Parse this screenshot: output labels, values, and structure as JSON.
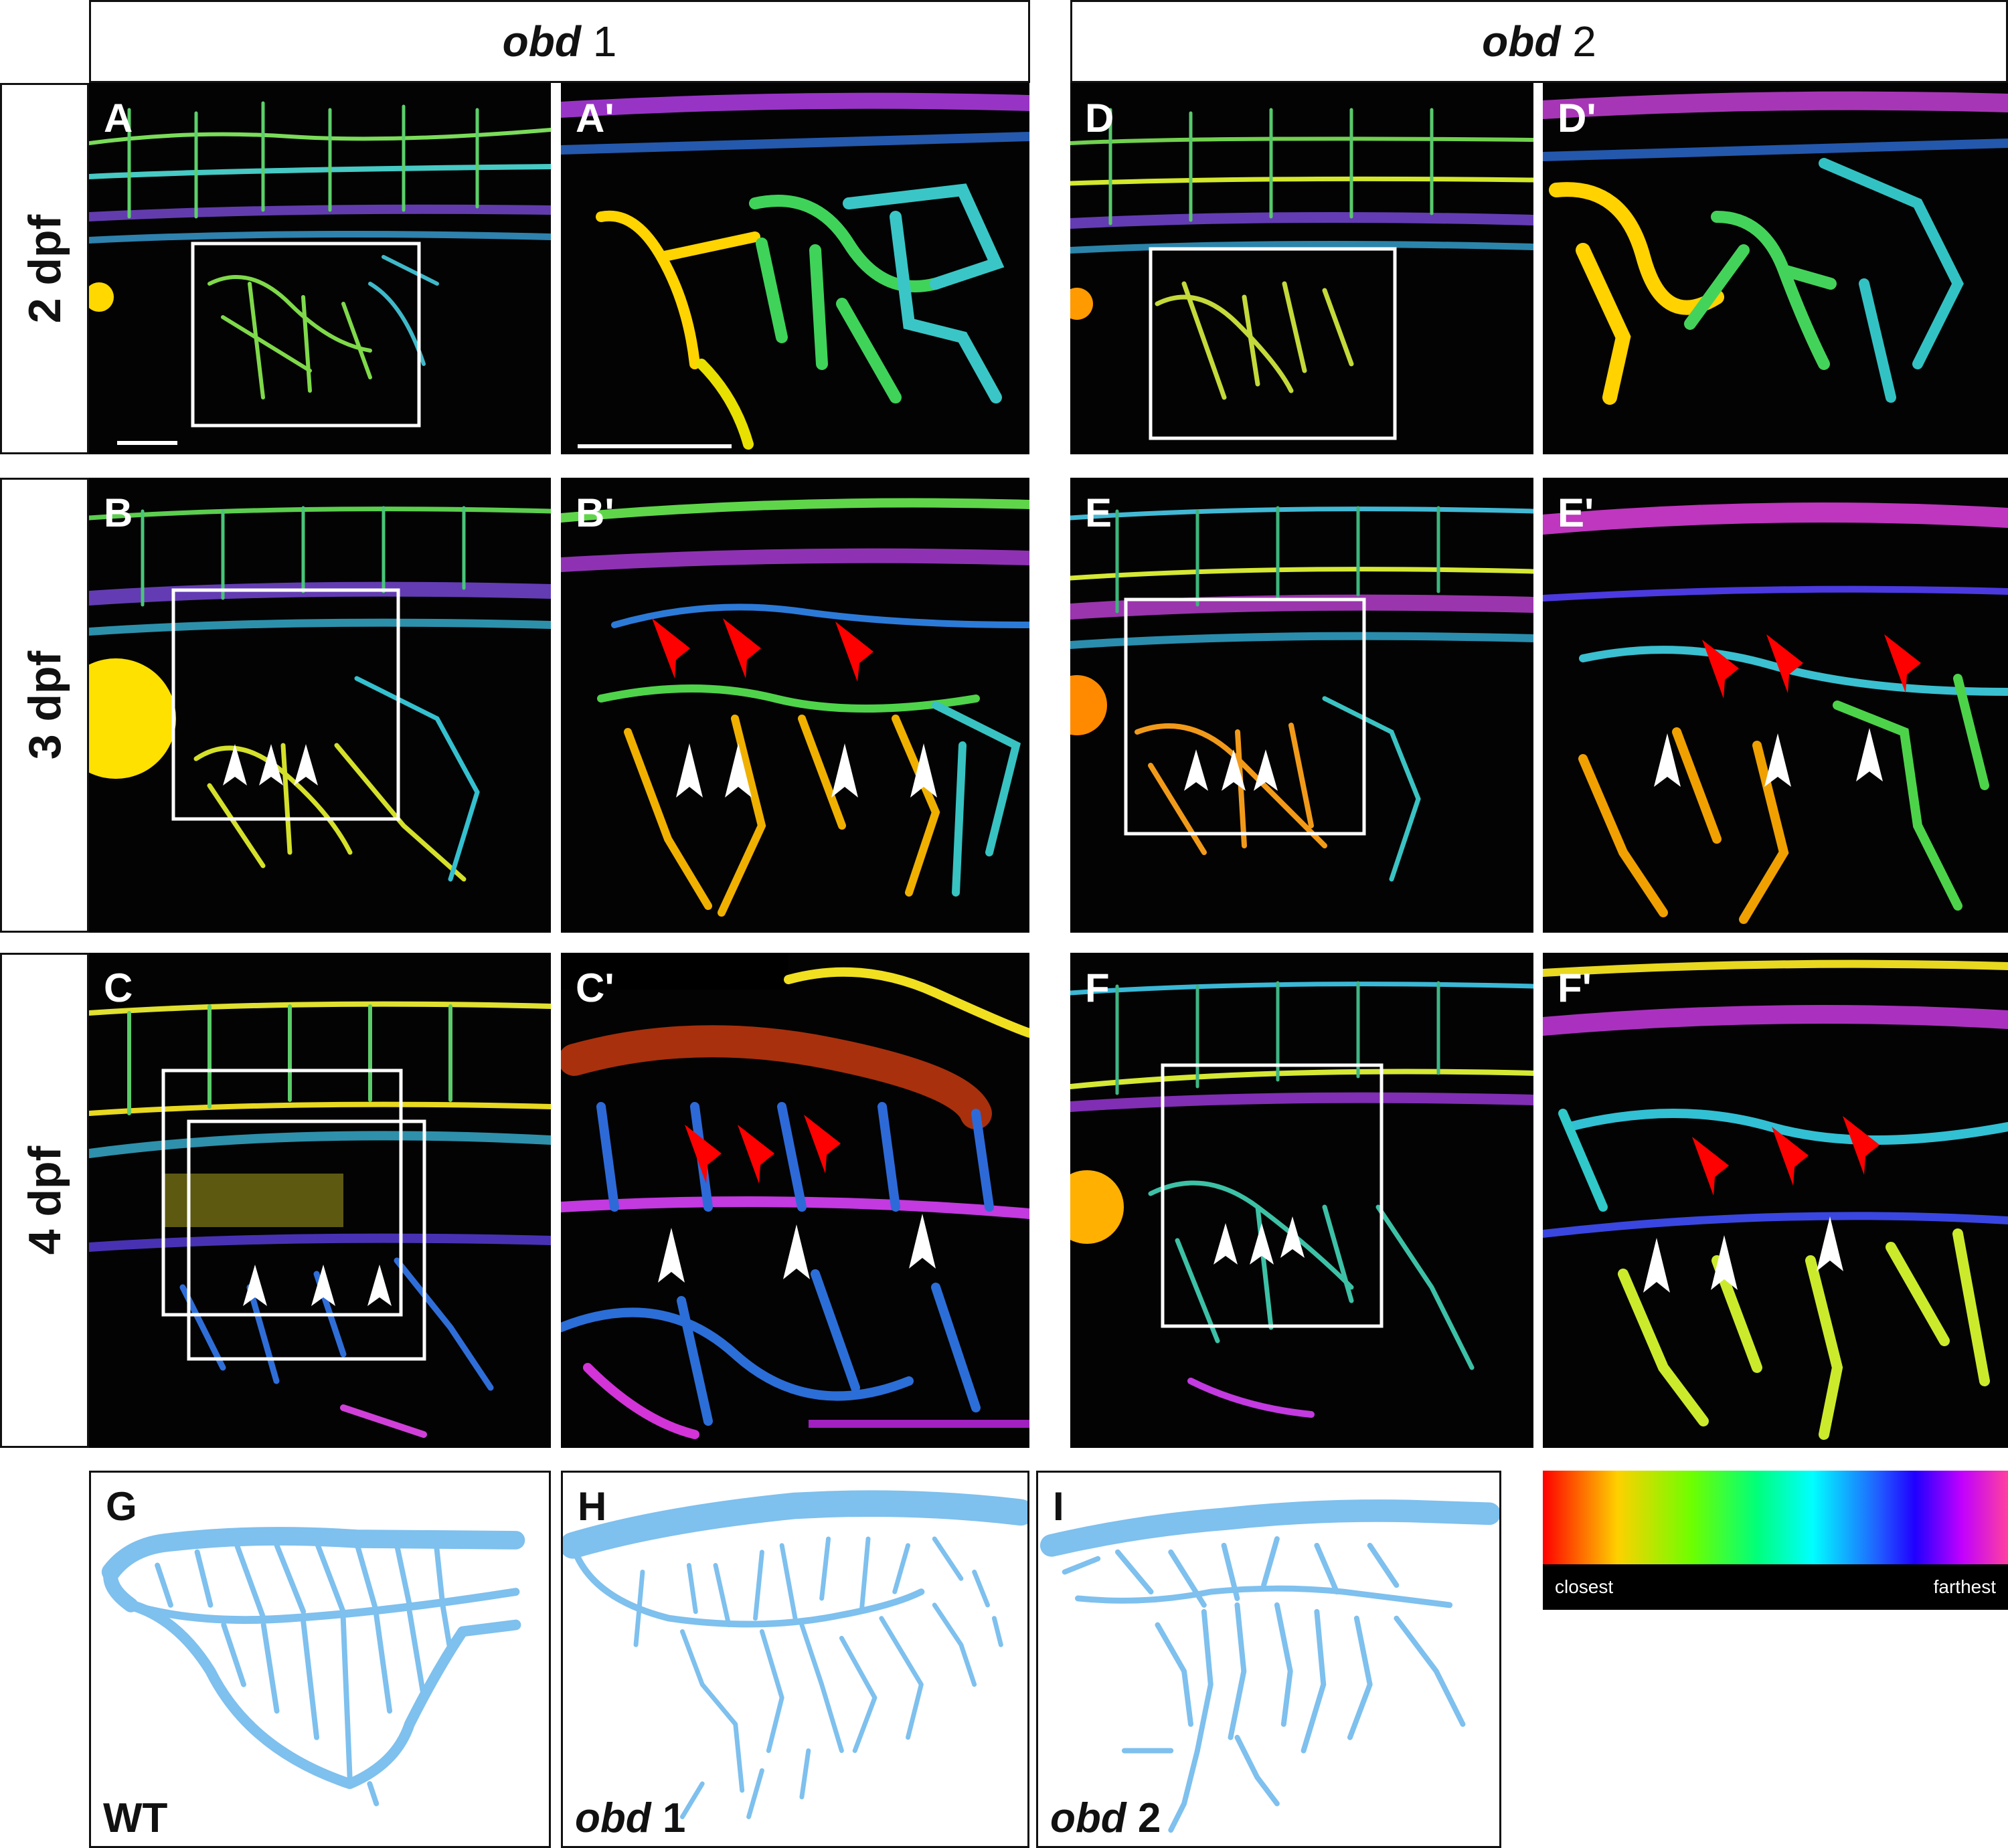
{
  "headers": {
    "obd1": {
      "italic": "obd",
      "num": " 1"
    },
    "obd2": {
      "italic": "obd",
      "num": " 2"
    }
  },
  "rows": [
    "2 dpf",
    "3 dpf",
    "4 dpf"
  ],
  "panels": {
    "A": "A",
    "A_prime": "A'",
    "D": "D",
    "D_prime": "D'",
    "B": "B",
    "B_prime": "B'",
    "E": "E",
    "E_prime": "E'",
    "C": "C",
    "C_prime": "C'",
    "F": "F",
    "F_prime": "F'"
  },
  "schematics": {
    "G": {
      "label": "G",
      "genotype_plain": "WT"
    },
    "H": {
      "label": "H",
      "genotype_italic": "obd",
      "genotype_num": " 1"
    },
    "I": {
      "label": "I",
      "genotype_italic": "obd",
      "genotype_num": " 2"
    }
  },
  "colorbar": {
    "left": "closest",
    "right": "farthest"
  },
  "colors": {
    "vessel": "#7ec0ee",
    "red_arrow": "#ff0000",
    "white_arrow": "#ffffff"
  }
}
